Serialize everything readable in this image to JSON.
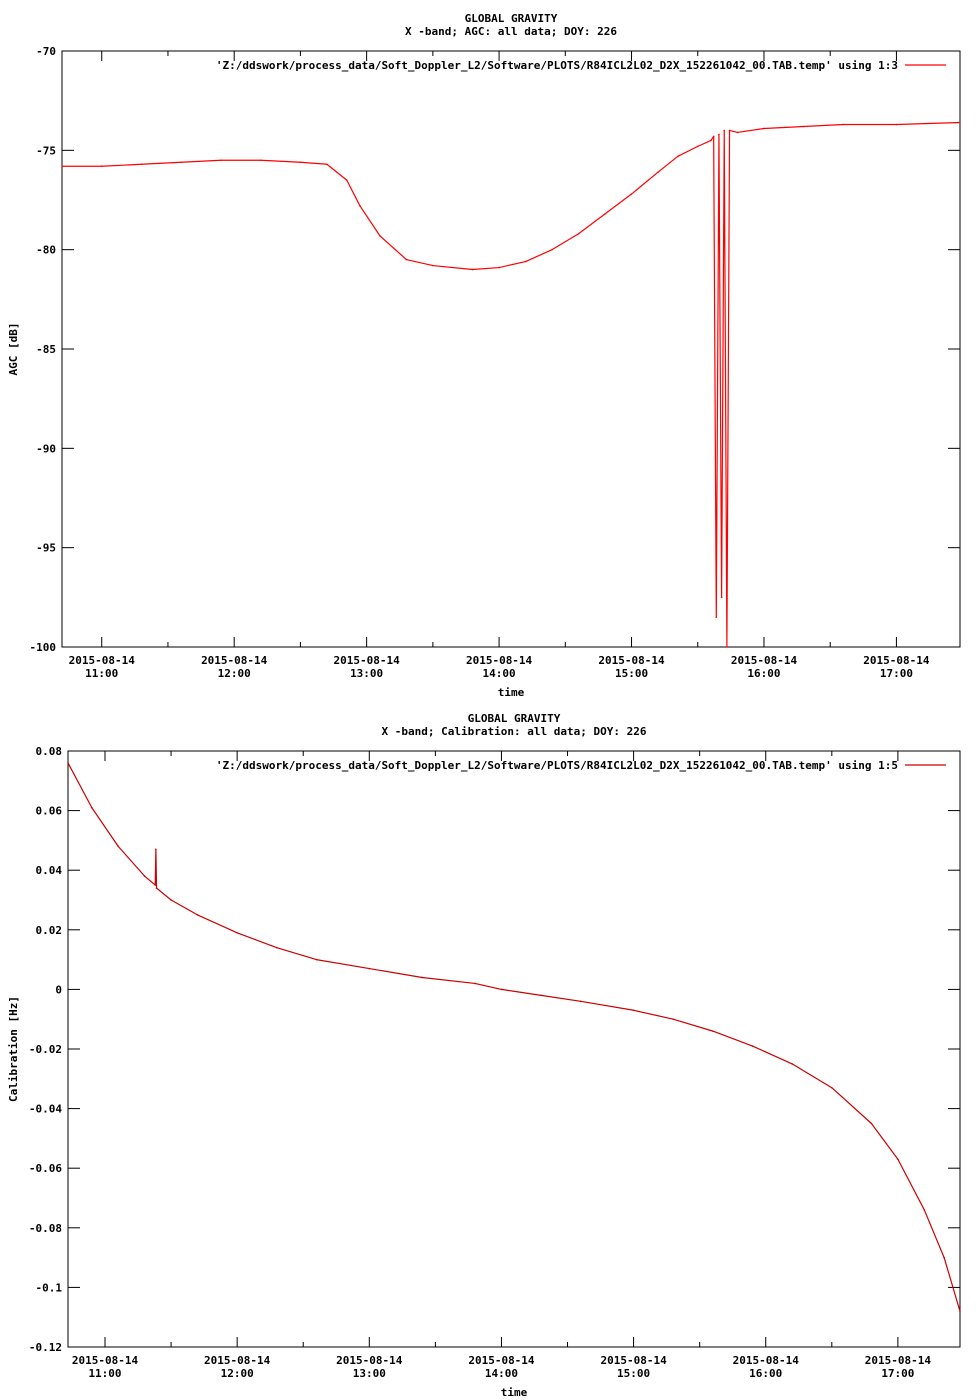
{
  "chart_data": [
    {
      "type": "line",
      "title": "GLOBAL GRAVITY",
      "subtitle": "X -band; AGC: all data; DOY: 226",
      "xlabel": "time",
      "ylabel": "AGC [dB]",
      "ylim": [
        -100,
        -70
      ],
      "yticks": [
        "-70",
        "-75",
        "-80",
        "-85",
        "-90",
        "-95",
        "-100"
      ],
      "ytick_values": [
        -70,
        -75,
        -80,
        -85,
        -90,
        -95,
        -100
      ],
      "xlim": [
        10.7,
        17.48
      ],
      "xtick_values": [
        11,
        12,
        13,
        14,
        15,
        16,
        17
      ],
      "xtick_dates": [
        "2015-08-14",
        "2015-08-14",
        "2015-08-14",
        "2015-08-14",
        "2015-08-14",
        "2015-08-14",
        "2015-08-14"
      ],
      "xtick_times": [
        "11:00",
        "12:00",
        "13:00",
        "14:00",
        "15:00",
        "16:00",
        "17:00"
      ],
      "legend_position": "top-right",
      "grid": false,
      "color": "#ff0000",
      "series": [
        {
          "name": "'Z:/ddswork/process_data/Soft_Doppler_L2/Software/PLOTS/R84ICL2L02_D2X_152261042_00.TAB.temp' using 1:3",
          "x": [
            10.7,
            11.0,
            11.3,
            11.6,
            11.9,
            12.2,
            12.5,
            12.7,
            12.85,
            12.95,
            13.1,
            13.3,
            13.5,
            13.8,
            14.0,
            14.2,
            14.4,
            14.6,
            14.8,
            15.0,
            15.2,
            15.35,
            15.5,
            15.6,
            15.62,
            15.64,
            15.66,
            15.68,
            15.7,
            15.72,
            15.74,
            15.8,
            16.0,
            16.3,
            16.6,
            17.0,
            17.48
          ],
          "y": [
            -75.8,
            -75.8,
            -75.7,
            -75.6,
            -75.5,
            -75.5,
            -75.6,
            -75.7,
            -76.5,
            -77.8,
            -79.3,
            -80.5,
            -80.8,
            -81.0,
            -80.9,
            -80.6,
            -80.0,
            -79.2,
            -78.2,
            -77.2,
            -76.1,
            -75.3,
            -74.8,
            -74.5,
            -74.3,
            -98.5,
            -74.2,
            -97.5,
            -74.0,
            -100.0,
            -74.0,
            -74.1,
            -73.9,
            -73.8,
            -73.7,
            -73.7,
            -73.6
          ]
        }
      ]
    },
    {
      "type": "line",
      "title": "GLOBAL GRAVITY",
      "subtitle": "X -band; Calibration: all data; DOY: 226",
      "xlabel": "time",
      "ylabel": "Calibration [Hz]",
      "ylim": [
        -0.12,
        0.08
      ],
      "yticks": [
        "0.08",
        "0.06",
        "0.04",
        "0.02",
        "0",
        "-0.02",
        "-0.04",
        "-0.06",
        "-0.08",
        "-0.1",
        "-0.12"
      ],
      "ytick_values": [
        0.08,
        0.06,
        0.04,
        0.02,
        0,
        -0.02,
        -0.04,
        -0.06,
        -0.08,
        -0.1,
        -0.12
      ],
      "xlim": [
        10.72,
        17.47
      ],
      "xtick_values": [
        11,
        12,
        13,
        14,
        15,
        16,
        17
      ],
      "xtick_dates": [
        "2015-08-14",
        "2015-08-14",
        "2015-08-14",
        "2015-08-14",
        "2015-08-14",
        "2015-08-14",
        "2015-08-14"
      ],
      "xtick_times": [
        "11:00",
        "12:00",
        "13:00",
        "14:00",
        "15:00",
        "16:00",
        "17:00"
      ],
      "legend_position": "top-right",
      "grid": false,
      "color": "#cc0000",
      "series": [
        {
          "name": "'Z:/ddswork/process_data/Soft_Doppler_L2/Software/PLOTS/R84ICL2L02_D2X_152261042_00.TAB.temp' using 1:5",
          "x": [
            10.72,
            10.9,
            11.1,
            11.3,
            11.38,
            11.385,
            11.39,
            11.5,
            11.7,
            12.0,
            12.3,
            12.6,
            13.0,
            13.4,
            13.8,
            14.0,
            14.3,
            14.6,
            15.0,
            15.3,
            15.6,
            15.9,
            16.2,
            16.5,
            16.8,
            17.0,
            17.2,
            17.35,
            17.47
          ],
          "y": [
            0.076,
            0.061,
            0.048,
            0.038,
            0.035,
            0.047,
            0.034,
            0.03,
            0.025,
            0.019,
            0.014,
            0.01,
            0.007,
            0.004,
            0.002,
            0.0,
            -0.002,
            -0.004,
            -0.007,
            -0.01,
            -0.014,
            -0.019,
            -0.025,
            -0.033,
            -0.045,
            -0.057,
            -0.074,
            -0.09,
            -0.108
          ]
        }
      ]
    }
  ]
}
